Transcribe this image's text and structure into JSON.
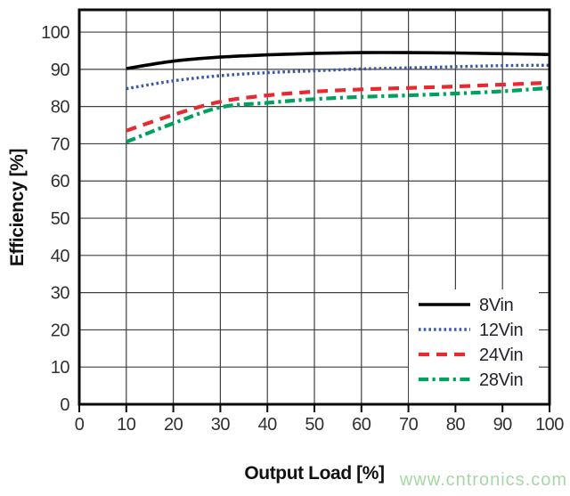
{
  "watermark": {
    "text": "www.cntronics.com",
    "color": "#a6d7a6"
  },
  "chart_data": {
    "type": "line",
    "title": "",
    "xlabel": "Output Load [%]",
    "ylabel": "Efficiency [%]",
    "xlim": [
      0,
      100
    ],
    "ylim": [
      0,
      106
    ],
    "xticks": [
      0,
      10,
      20,
      30,
      40,
      50,
      60,
      70,
      80,
      90,
      100
    ],
    "yticks": [
      0,
      10,
      20,
      30,
      40,
      50,
      60,
      70,
      80,
      90,
      100
    ],
    "grid": true,
    "legend_position": "bottom-right",
    "x": [
      10,
      20,
      30,
      40,
      50,
      60,
      70,
      80,
      90,
      100
    ],
    "series": [
      {
        "name": "8Vin",
        "style": "solid",
        "color": "#000000",
        "values": [
          90.2,
          92.2,
          93.3,
          93.9,
          94.3,
          94.5,
          94.5,
          94.4,
          94.2,
          94.0
        ]
      },
      {
        "name": "12Vin",
        "style": "dotted",
        "color": "#3a58a8",
        "values": [
          84.8,
          86.9,
          88.3,
          89.1,
          89.6,
          90.1,
          90.4,
          90.7,
          91.0,
          91.1
        ]
      },
      {
        "name": "24Vin",
        "style": "dashed",
        "color": "#e62b30",
        "values": [
          73.5,
          77.8,
          81.3,
          83.0,
          84.0,
          84.6,
          85.0,
          85.4,
          85.9,
          86.4
        ]
      },
      {
        "name": "28Vin",
        "style": "dashdot",
        "color": "#00a15d",
        "values": [
          70.5,
          75.5,
          79.8,
          81.0,
          82.0,
          82.6,
          83.0,
          83.5,
          84.1,
          85.0
        ]
      }
    ],
    "colors": {
      "grid": "#404040",
      "frame": "#0a0a0a",
      "tick_label": "#303030",
      "axis_title": "#111111",
      "legend_text": "#20202a",
      "legend_bg": "#ffffff",
      "background": "#ffffff"
    }
  }
}
